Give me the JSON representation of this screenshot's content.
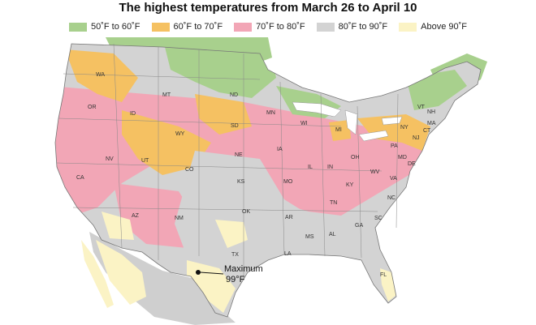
{
  "title": "The highest temperatures from March 26 to April 10",
  "legend": [
    {
      "label": "50˚F to 60˚F",
      "color": "#a8d08d"
    },
    {
      "label": "60˚F to 70˚F",
      "color": "#f5c162"
    },
    {
      "label": "70˚F to 80˚F",
      "color": "#f2a6b6"
    },
    {
      "label": "80˚F to 90˚F",
      "color": "#d3d3d3"
    },
    {
      "label": "Above 90˚F",
      "color": "#fbf3c5"
    }
  ],
  "annotation": {
    "line1": "Maximum",
    "line2": "99°F"
  },
  "states": [
    "WA",
    "MT",
    "ND",
    "OR",
    "ID",
    "SD",
    "MN",
    "WY",
    "WI",
    "MI",
    "VT",
    "NH",
    "NY",
    "MA",
    "CT",
    "NJ",
    "PA",
    "NE",
    "IA",
    "NV",
    "UT",
    "CO",
    "IL",
    "IN",
    "OH",
    "WV",
    "MD",
    "DE",
    "CA",
    "KS",
    "MO",
    "KY",
    "VA",
    "TN",
    "NC",
    "AZ",
    "NM",
    "OK",
    "AR",
    "SC",
    "MS",
    "AL",
    "GA",
    "LA",
    "TX",
    "FL"
  ]
}
